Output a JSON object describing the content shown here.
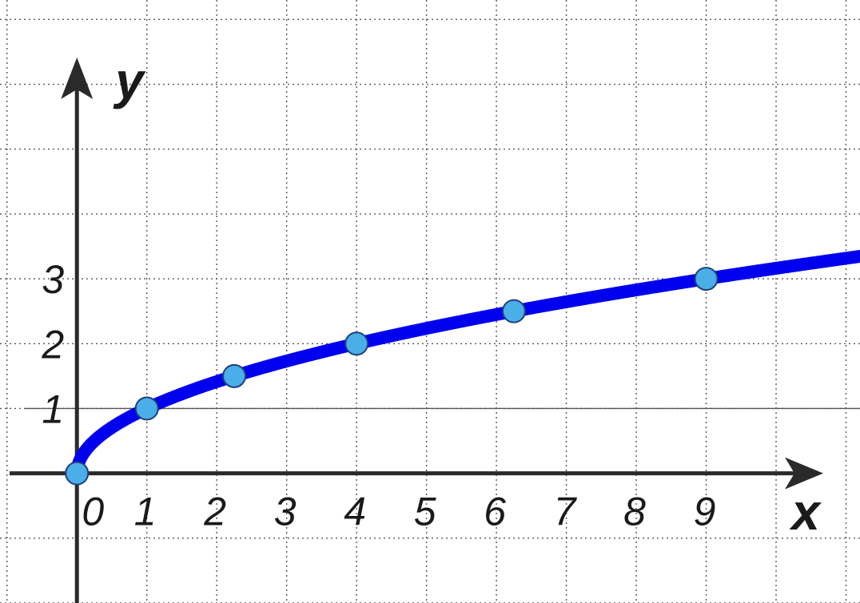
{
  "chart_data": {
    "type": "line",
    "title": "",
    "xlabel": "x",
    "ylabel": "y",
    "origin_label": "0",
    "x_ticks": [
      "1",
      "2",
      "3",
      "4",
      "5",
      "6",
      "7",
      "8",
      "9"
    ],
    "y_ticks": [
      "1",
      "2",
      "3"
    ],
    "xlim": [
      -1.1,
      11.2
    ],
    "ylim": [
      -2,
      7.3
    ],
    "grid": true,
    "series": [
      {
        "function": "sqrt",
        "x": [
          0,
          1,
          2.25,
          4,
          6.25,
          9
        ],
        "y": [
          0,
          1,
          1.5,
          2,
          2.5,
          3
        ],
        "color": "#0000ee",
        "marker_color": "#4aaee8"
      }
    ],
    "annotations": [
      {
        "type": "hline",
        "y": 1,
        "color": "#555555"
      }
    ]
  }
}
